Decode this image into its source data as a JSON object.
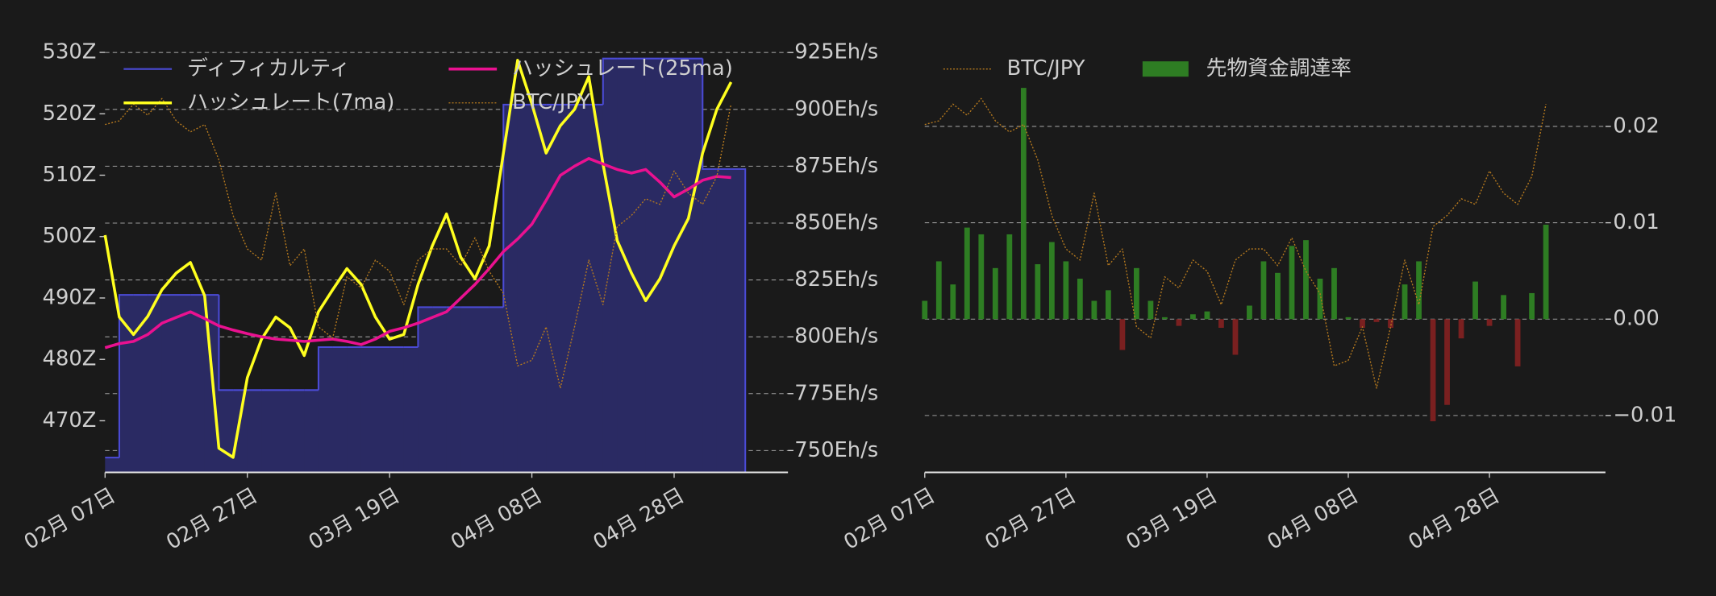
{
  "chart_data": [
    {
      "type": "line",
      "x": [
        "02-07",
        "02-09",
        "02-11",
        "02-13",
        "02-15",
        "02-17",
        "02-19",
        "02-21",
        "02-23",
        "02-25",
        "02-27",
        "03-01",
        "03-03",
        "03-05",
        "03-07",
        "03-09",
        "03-11",
        "03-13",
        "03-15",
        "03-17",
        "03-19",
        "03-21",
        "03-23",
        "03-25",
        "03-27",
        "03-29",
        "03-31",
        "04-02",
        "04-04",
        "04-06",
        "04-08",
        "04-10",
        "04-12",
        "04-14",
        "04-16",
        "04-18",
        "04-20",
        "04-22",
        "04-24",
        "04-26",
        "04-28",
        "04-30",
        "05-02",
        "05-04",
        "05-06"
      ],
      "xticks": [
        {
          "value": "02-07",
          "label": "02月 07日"
        },
        {
          "value": "02-27",
          "label": "02月 27日"
        },
        {
          "value": "03-19",
          "label": "03月 19日"
        },
        {
          "value": "04-08",
          "label": "04月 08日"
        },
        {
          "value": "04-28",
          "label": "04月 28日"
        }
      ],
      "ylim": [
        461.6,
        530.5
      ],
      "yticks": [
        {
          "value": 470,
          "label": "470Z"
        },
        {
          "value": 480,
          "label": "480Z"
        },
        {
          "value": 490,
          "label": "490Z"
        },
        {
          "value": 500,
          "label": "500Z"
        },
        {
          "value": 510,
          "label": "510Z"
        },
        {
          "value": 520,
          "label": "520Z"
        },
        {
          "value": 530,
          "label": "530Z"
        }
      ],
      "y2lim": [
        740.4,
        926.4
      ],
      "y2ticks": [
        {
          "value": 750,
          "label": "750Eh/s"
        },
        {
          "value": 775,
          "label": "775Eh/s"
        },
        {
          "value": 800,
          "label": "800Eh/s"
        },
        {
          "value": 825,
          "label": "825Eh/s"
        },
        {
          "value": 850,
          "label": "850Eh/s"
        },
        {
          "value": 875,
          "label": "875Eh/s"
        },
        {
          "value": 900,
          "label": "900Eh/s"
        },
        {
          "value": 925,
          "label": "925Eh/s"
        }
      ],
      "grid": "y2",
      "legend": "upper left",
      "legend_columns": 2,
      "series": [
        {
          "name": "ディフィカルティ",
          "color": "#4b4bd6",
          "fill": "#2a2a63",
          "step": true,
          "values": [
            464,
            490.5,
            490.5,
            490.5,
            490.5,
            490.5,
            490.5,
            490.5,
            475,
            475,
            475,
            475,
            475,
            475,
            475,
            482,
            482,
            482,
            482,
            482,
            482,
            482,
            488.5,
            488.5,
            488.5,
            488.5,
            488.5,
            488.5,
            521.5,
            521.5,
            521.5,
            521.5,
            521.5,
            521.5,
            521.5,
            529,
            529,
            529,
            529,
            529,
            529,
            529,
            511,
            511,
            511
          ]
        },
        {
          "name": "ハッシュレート(7ma)",
          "color": "#ffff1f",
          "axis": "y2",
          "values": [
            844.7,
            808.7,
            801,
            809,
            820.7,
            828,
            832.7,
            818,
            751,
            747,
            782,
            799,
            808.7,
            804,
            791.8,
            811,
            820.7,
            830,
            823,
            808.7,
            799,
            801,
            823,
            840,
            854,
            835,
            825.5,
            840,
            880.8,
            921.6,
            902.4,
            880.8,
            892.8,
            900,
            914.4,
            876,
            842.3,
            828,
            815.9,
            825.5,
            840,
            852,
            880.8,
            900,
            912
          ]
        },
        {
          "name": "ハッシュレート(25ma)",
          "color": "#ea1190",
          "axis": "y2",
          "values": [
            795.2,
            797,
            798,
            801,
            806,
            808.5,
            811,
            808,
            804.8,
            803,
            801.4,
            800,
            799,
            798.5,
            798,
            798.5,
            799,
            798,
            796.6,
            799,
            802.4,
            804,
            806,
            808.5,
            811,
            817,
            823,
            830,
            837.5,
            843,
            849.5,
            860,
            871,
            875,
            878.4,
            876,
            873.6,
            872,
            873.6,
            868,
            861.5,
            865,
            868.8,
            870.5,
            870
          ]
        },
        {
          "name": "BTC/JPY",
          "color": "#b77a1e",
          "axis": "y3",
          "linestyle": "dotted",
          "values": [
            15000000,
            15040000,
            15220000,
            15100000,
            15280000,
            15040000,
            14920000,
            15000000,
            14620000,
            14020000,
            13660000,
            13540000,
            14260000,
            13480000,
            13660000,
            12820000,
            12700000,
            13360000,
            13240000,
            13540000,
            13420000,
            13060000,
            13540000,
            13660000,
            13660000,
            13480000,
            13780000,
            13420000,
            13180000,
            12400000,
            12460000,
            12820000,
            12160000,
            12820000,
            13540000,
            13060000,
            13900000,
            14020000,
            14200000,
            14140000,
            14500000,
            14260000,
            14140000,
            14440000,
            15220000
          ]
        }
      ]
    },
    {
      "type": "bar",
      "x": [
        "02-07",
        "02-09",
        "02-11",
        "02-13",
        "02-15",
        "02-17",
        "02-19",
        "02-21",
        "02-23",
        "02-25",
        "02-27",
        "03-01",
        "03-03",
        "03-05",
        "03-07",
        "03-09",
        "03-11",
        "03-13",
        "03-15",
        "03-17",
        "03-19",
        "03-21",
        "03-23",
        "03-25",
        "03-27",
        "03-29",
        "03-31",
        "04-02",
        "04-04",
        "04-06",
        "04-08",
        "04-10",
        "04-12",
        "04-14",
        "04-16",
        "04-18",
        "04-20",
        "04-22",
        "04-24",
        "04-26",
        "04-28",
        "04-30",
        "05-02",
        "05-04",
        "05-06"
      ],
      "xticks": [
        {
          "value": "02-07",
          "label": "02月 07日"
        },
        {
          "value": "02-27",
          "label": "02月 27日"
        },
        {
          "value": "03-19",
          "label": "03月 19日"
        },
        {
          "value": "04-08",
          "label": "04月 08日"
        },
        {
          "value": "04-28",
          "label": "04月 28日"
        }
      ],
      "ylim": [
        -0.0159,
        0.028
      ],
      "yticks": [
        {
          "value": -0.01,
          "label": "−0.01"
        },
        {
          "value": 0,
          "label": "0.00"
        },
        {
          "value": 0.01,
          "label": "0.01"
        },
        {
          "value": 0.02,
          "label": "0.02"
        }
      ],
      "grid": "y",
      "legend": "upper left",
      "legend_columns": 2,
      "series": [
        {
          "name": "BTC/JPY",
          "color": "#b77a1e",
          "axis": "y3",
          "linestyle": "dotted",
          "values": [
            15000000,
            15040000,
            15220000,
            15100000,
            15280000,
            15040000,
            14920000,
            15000000,
            14620000,
            14020000,
            13660000,
            13540000,
            14260000,
            13480000,
            13660000,
            12820000,
            12700000,
            13360000,
            13240000,
            13540000,
            13420000,
            13060000,
            13540000,
            13660000,
            13660000,
            13480000,
            13780000,
            13420000,
            13180000,
            12400000,
            12460000,
            12820000,
            12160000,
            12820000,
            13540000,
            13060000,
            13900000,
            14020000,
            14200000,
            14140000,
            14500000,
            14260000,
            14140000,
            14440000,
            15220000
          ]
        },
        {
          "name": "先物資金調達率",
          "color": "#2e7d23",
          "negative_color": "#7a2020",
          "values": [
            0.0019,
            0.006,
            0.0036,
            0.0095,
            0.0088,
            0.0053,
            0.0088,
            0.024,
            0.0057,
            0.008,
            0.006,
            0.0042,
            0.0019,
            0.003,
            -0.0032,
            0.0053,
            0.0019,
            0.0002,
            -0.0007,
            0.0005,
            0.0008,
            -0.0009,
            -0.0037,
            0.0014,
            0.006,
            0.0048,
            0.0076,
            0.0082,
            0.0042,
            0.0053,
            0.0002,
            -0.0009,
            -0.0003,
            -0.0009,
            0.0036,
            0.006,
            -0.0106,
            -0.0089,
            -0.002,
            0.0039,
            -0.0007,
            0.0025,
            -0.0049,
            0.0027,
            0.0098
          ]
        }
      ]
    }
  ]
}
